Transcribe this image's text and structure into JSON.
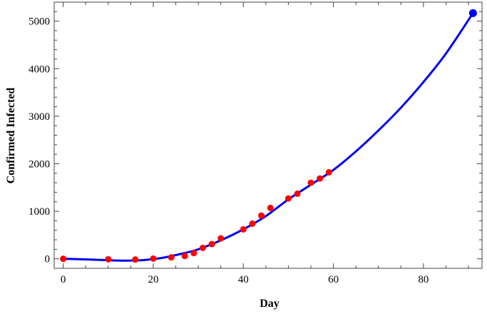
{
  "chart_data": {
    "type": "scatter",
    "title": "",
    "xlabel": "Day",
    "ylabel": "Confirmed Infected",
    "xlim": [
      -2,
      93
    ],
    "ylim": [
      -200,
      5400
    ],
    "x_ticks": [
      0,
      20,
      40,
      60,
      80
    ],
    "y_ticks": [
      0,
      1000,
      2000,
      3000,
      4000,
      5000
    ],
    "grid": false,
    "legend": "none",
    "colors": {
      "points": "#ff0000",
      "curve": "#0000ee",
      "endpoint": "#0000ee"
    },
    "series": [
      {
        "kind": "scatter",
        "points": [
          [
            0,
            0
          ],
          [
            10,
            -10
          ],
          [
            16,
            -15
          ],
          [
            20,
            5
          ],
          [
            24,
            30
          ],
          [
            27,
            60
          ],
          [
            29,
            120
          ],
          [
            31,
            230
          ],
          [
            33,
            310
          ],
          [
            35,
            430
          ],
          [
            40,
            620
          ],
          [
            42,
            740
          ],
          [
            44,
            910
          ],
          [
            46,
            1070
          ],
          [
            50,
            1270
          ],
          [
            52,
            1370
          ],
          [
            55,
            1600
          ],
          [
            57,
            1690
          ],
          [
            59,
            1820
          ]
        ]
      },
      {
        "kind": "line",
        "points": [
          [
            0,
            0
          ],
          [
            5,
            -12
          ],
          [
            10,
            -30
          ],
          [
            14,
            -38
          ],
          [
            18,
            -25
          ],
          [
            22,
            20
          ],
          [
            26,
            100
          ],
          [
            30,
            200
          ],
          [
            35,
            390
          ],
          [
            40,
            620
          ],
          [
            45,
            900
          ],
          [
            50,
            1250
          ],
          [
            55,
            1560
          ],
          [
            60,
            1870
          ],
          [
            65,
            2260
          ],
          [
            70,
            2700
          ],
          [
            75,
            3180
          ],
          [
            80,
            3720
          ],
          [
            85,
            4320
          ],
          [
            91,
            5170
          ]
        ]
      },
      {
        "kind": "endpoint",
        "points": [
          [
            91,
            5170
          ]
        ]
      }
    ]
  }
}
